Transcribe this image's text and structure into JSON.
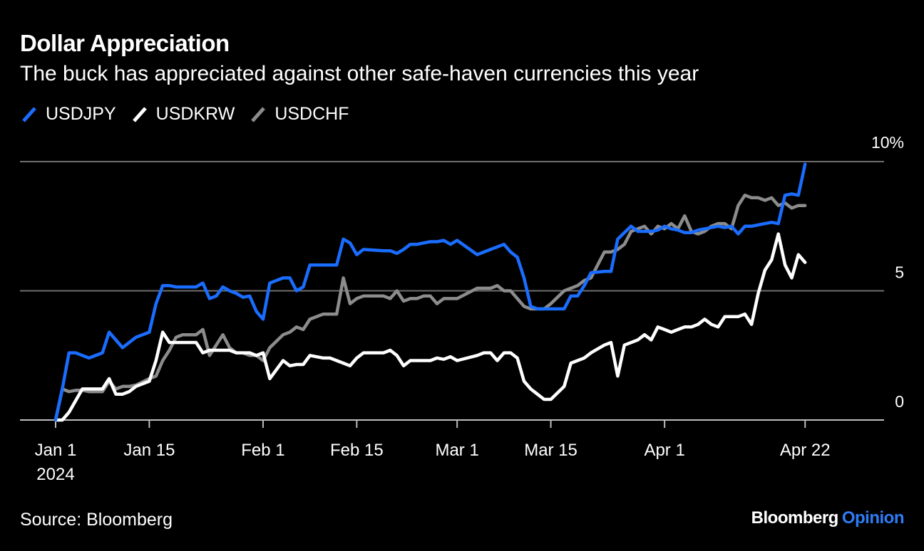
{
  "title": "Dollar Appreciation",
  "subtitle": "The buck has appreciated against other safe-haven currencies this year",
  "source": "Source: Bloomberg",
  "brand": {
    "name": "Bloomberg",
    "suffix": "Opinion"
  },
  "colors": {
    "background": "#000000",
    "usdjpy": "#1a6dff",
    "usdkrw": "#ffffff",
    "usdchf": "#8c8c8c",
    "grid": "#6e6e6e"
  },
  "chart_data": {
    "type": "line",
    "title": "Dollar Appreciation",
    "xlabel": "",
    "ylabel": "",
    "x_range_days": [
      -4,
      128
    ],
    "ylim": [
      0,
      10
    ],
    "y_ticks": [
      {
        "value": 10,
        "label": "10%"
      },
      {
        "value": 5,
        "label": "5"
      },
      {
        "value": 0,
        "label": "0"
      }
    ],
    "x_ticks": [
      {
        "day": 0,
        "label": "Jan 1",
        "sublabel": "2024"
      },
      {
        "day": 14,
        "label": "Jan 15"
      },
      {
        "day": 31,
        "label": "Feb 1"
      },
      {
        "day": 45,
        "label": "Feb 15"
      },
      {
        "day": 60,
        "label": "Mar 1"
      },
      {
        "day": 74,
        "label": "Mar 15"
      },
      {
        "day": 91,
        "label": "Apr 1"
      },
      {
        "day": 112,
        "label": "Apr 22"
      }
    ],
    "legend": [
      "USDJPY",
      "USDKRW",
      "USDCHF"
    ],
    "series": [
      {
        "name": "USDJPY",
        "x": [
          0,
          1,
          2,
          3,
          4,
          5,
          7,
          8,
          9,
          10,
          11,
          12,
          14,
          15,
          16,
          17,
          18,
          19,
          21,
          22,
          23,
          24,
          25,
          26,
          27,
          28,
          29,
          30,
          31,
          32,
          34,
          35,
          36,
          37,
          38,
          40,
          41,
          42,
          43,
          44,
          45,
          46,
          49,
          50,
          51,
          52,
          53,
          54,
          55,
          56,
          57,
          58,
          59,
          60,
          63,
          64,
          65,
          66,
          67,
          68,
          69,
          70,
          71,
          72,
          73,
          74,
          76,
          77,
          78,
          79,
          80,
          82,
          83,
          84,
          85,
          86,
          87,
          88,
          89,
          90,
          91,
          92,
          93,
          94,
          95,
          96,
          97,
          98,
          99,
          100,
          101,
          102,
          103,
          104,
          105,
          106,
          107,
          108,
          109,
          110,
          111,
          112
        ],
        "values": [
          0,
          1.2,
          2.6,
          2.6,
          2.5,
          2.4,
          2.6,
          3.4,
          3.1,
          2.8,
          3.0,
          3.2,
          3.4,
          4.5,
          5.2,
          5.2,
          5.15,
          5.15,
          5.15,
          5.3,
          4.7,
          4.8,
          5.15,
          5.0,
          4.9,
          4.75,
          4.8,
          4.2,
          3.9,
          5.3,
          5.5,
          5.5,
          5.0,
          5.15,
          6.0,
          6.0,
          6.0,
          6.0,
          7.0,
          6.85,
          6.4,
          6.6,
          6.55,
          6.55,
          6.45,
          6.6,
          6.8,
          6.8,
          6.85,
          6.9,
          6.9,
          6.95,
          6.8,
          6.95,
          6.4,
          6.5,
          6.6,
          6.7,
          6.8,
          6.5,
          6.3,
          5.5,
          4.4,
          4.3,
          4.3,
          4.3,
          4.3,
          4.8,
          4.8,
          5.2,
          5.7,
          5.75,
          5.75,
          7.0,
          7.25,
          7.5,
          7.3,
          7.3,
          7.3,
          7.35,
          7.5,
          7.4,
          7.35,
          7.25,
          7.25,
          7.35,
          7.4,
          7.45,
          7.5,
          7.45,
          7.5,
          7.2,
          7.5,
          7.5,
          7.55,
          7.6,
          7.65,
          7.6,
          8.7,
          8.75,
          8.7,
          9.9
        ]
      },
      {
        "name": "USDKRW",
        "x": [
          0,
          1,
          2,
          4,
          5,
          7,
          8,
          9,
          10,
          11,
          12,
          14,
          15,
          16,
          17,
          18,
          19,
          21,
          22,
          23,
          24,
          25,
          26,
          27,
          28,
          29,
          30,
          31,
          32,
          34,
          35,
          36,
          37,
          38,
          40,
          41,
          42,
          43,
          44,
          45,
          46,
          49,
          50,
          51,
          52,
          53,
          54,
          55,
          56,
          57,
          58,
          59,
          60,
          63,
          64,
          65,
          66,
          67,
          68,
          69,
          70,
          71,
          72,
          73,
          74,
          76,
          77,
          78,
          79,
          80,
          82,
          83,
          84,
          85,
          86,
          87,
          88,
          89,
          90,
          91,
          92,
          93,
          94,
          95,
          96,
          97,
          98,
          99,
          100,
          101,
          102,
          103,
          104,
          105,
          106,
          107,
          108,
          109,
          110,
          111,
          112
        ],
        "values": [
          0,
          0,
          0.3,
          1.2,
          1.2,
          1.2,
          1.6,
          1.0,
          1.0,
          1.1,
          1.3,
          1.5,
          2.3,
          3.4,
          3.0,
          3.0,
          3.0,
          3.0,
          2.6,
          2.7,
          2.7,
          2.7,
          2.7,
          2.6,
          2.6,
          2.6,
          2.5,
          2.6,
          1.6,
          2.3,
          2.1,
          2.15,
          2.15,
          2.5,
          2.4,
          2.4,
          2.3,
          2.2,
          2.1,
          2.4,
          2.6,
          2.6,
          2.7,
          2.5,
          2.1,
          2.3,
          2.3,
          2.3,
          2.3,
          2.4,
          2.35,
          2.45,
          2.3,
          2.5,
          2.6,
          2.6,
          2.3,
          2.6,
          2.6,
          2.4,
          1.5,
          1.2,
          1.0,
          0.8,
          0.8,
          1.3,
          2.2,
          2.3,
          2.4,
          2.6,
          2.9,
          3.0,
          1.7,
          2.9,
          3.0,
          3.1,
          3.3,
          3.1,
          3.6,
          3.5,
          3.4,
          3.5,
          3.6,
          3.6,
          3.7,
          3.9,
          3.7,
          3.6,
          4.0,
          4.0,
          4.0,
          4.1,
          3.7,
          4.9,
          5.8,
          6.2,
          7.2,
          6.0,
          5.5,
          6.4,
          6.1
        ]
      },
      {
        "name": "USDCHF",
        "x": [
          0,
          1,
          2,
          3,
          4,
          5,
          7,
          8,
          9,
          10,
          11,
          12,
          14,
          15,
          16,
          17,
          18,
          19,
          21,
          22,
          23,
          24,
          25,
          26,
          27,
          28,
          29,
          30,
          31,
          32,
          34,
          35,
          36,
          37,
          38,
          40,
          41,
          42,
          43,
          44,
          45,
          46,
          49,
          50,
          51,
          52,
          53,
          54,
          55,
          56,
          57,
          58,
          59,
          60,
          63,
          64,
          65,
          66,
          67,
          68,
          69,
          70,
          71,
          72,
          73,
          74,
          76,
          77,
          78,
          79,
          80,
          82,
          83,
          84,
          85,
          86,
          87,
          88,
          89,
          90,
          91,
          92,
          93,
          94,
          95,
          96,
          97,
          98,
          99,
          100,
          101,
          102,
          103,
          104,
          105,
          106,
          107,
          108,
          109,
          110,
          111,
          112
        ],
        "values": [
          0,
          1.2,
          1.1,
          1.15,
          1.15,
          1.1,
          1.1,
          1.5,
          1.2,
          1.3,
          1.3,
          1.35,
          1.6,
          1.7,
          2.3,
          2.7,
          3.2,
          3.3,
          3.3,
          3.5,
          2.5,
          2.9,
          3.3,
          2.8,
          2.6,
          2.6,
          2.5,
          2.5,
          2.3,
          2.8,
          3.3,
          3.4,
          3.6,
          3.5,
          3.9,
          4.1,
          4.1,
          4.1,
          5.5,
          4.5,
          4.7,
          4.8,
          4.8,
          4.7,
          5.0,
          4.6,
          4.7,
          4.7,
          4.8,
          4.8,
          4.5,
          4.7,
          4.7,
          4.7,
          5.1,
          5.1,
          5.1,
          5.2,
          5.0,
          5.0,
          4.7,
          4.4,
          4.3,
          4.3,
          4.3,
          4.5,
          5.0,
          5.1,
          5.2,
          5.4,
          5.5,
          6.5,
          6.5,
          6.6,
          6.8,
          7.3,
          7.4,
          7.5,
          7.2,
          7.5,
          7.4,
          7.6,
          7.4,
          7.9,
          7.3,
          7.2,
          7.3,
          7.5,
          7.6,
          7.6,
          7.4,
          8.3,
          8.7,
          8.6,
          8.6,
          8.5,
          8.6,
          8.3,
          8.4,
          8.2,
          8.3,
          8.3
        ]
      }
    ]
  }
}
